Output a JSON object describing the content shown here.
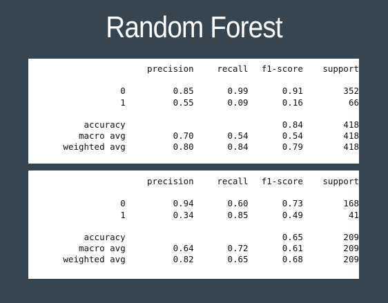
{
  "title": "Random Forest",
  "reports": [
    {
      "headers": [
        "",
        "precision",
        "recall",
        "f1-score",
        "support"
      ],
      "class_rows": [
        {
          "label": "0",
          "precision": "0.85",
          "recall": "0.99",
          "f1": "0.91",
          "support": "352"
        },
        {
          "label": "1",
          "precision": "0.55",
          "recall": "0.09",
          "f1": "0.16",
          "support": "66"
        }
      ],
      "summary_rows": [
        {
          "label": "accuracy",
          "precision": "",
          "recall": "",
          "f1": "0.84",
          "support": "418"
        },
        {
          "label": "macro avg",
          "precision": "0.70",
          "recall": "0.54",
          "f1": "0.54",
          "support": "418"
        },
        {
          "label": "weighted avg",
          "precision": "0.80",
          "recall": "0.84",
          "f1": "0.79",
          "support": "418"
        }
      ]
    },
    {
      "headers": [
        "",
        "precision",
        "recall",
        "f1-score",
        "support"
      ],
      "class_rows": [
        {
          "label": "0",
          "precision": "0.94",
          "recall": "0.60",
          "f1": "0.73",
          "support": "168"
        },
        {
          "label": "1",
          "precision": "0.34",
          "recall": "0.85",
          "f1": "0.49",
          "support": "41"
        }
      ],
      "summary_rows": [
        {
          "label": "accuracy",
          "precision": "",
          "recall": "",
          "f1": "0.65",
          "support": "209"
        },
        {
          "label": "macro avg",
          "precision": "0.64",
          "recall": "0.72",
          "f1": "0.61",
          "support": "209"
        },
        {
          "label": "weighted avg",
          "precision": "0.82",
          "recall": "0.65",
          "f1": "0.68",
          "support": "209"
        }
      ]
    }
  ]
}
